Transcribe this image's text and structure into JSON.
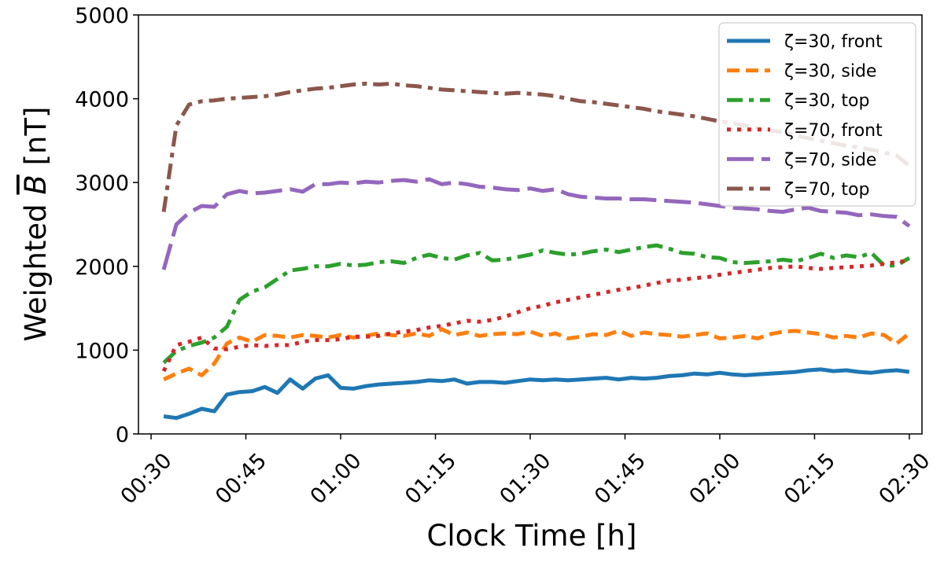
{
  "chart_data": {
    "type": "line",
    "xlabel": "Clock Time [h]",
    "ylabel": "Weighted B̄ [nT]",
    "ylabel_prefix": "Weighted ",
    "ylabel_symbol": "B",
    "ylabel_suffix": " [nT]",
    "xlim": [
      28,
      152
    ],
    "ylim": [
      0,
      5000
    ],
    "x_units": "minutes after 00:00",
    "x_ticks": [
      30,
      45,
      60,
      75,
      90,
      105,
      120,
      135,
      150
    ],
    "x_tick_labels": [
      "00:30",
      "00:45",
      "01:00",
      "01:15",
      "01:30",
      "01:45",
      "02:00",
      "02:15",
      "02:30"
    ],
    "y_ticks": [
      0,
      1000,
      2000,
      3000,
      4000,
      5000
    ],
    "y_tick_labels": [
      "0",
      "1000",
      "2000",
      "3000",
      "4000",
      "5000"
    ],
    "grid": false,
    "legend_position": "top-right",
    "x": [
      32,
      34,
      36,
      38,
      40,
      42,
      44,
      46,
      48,
      50,
      52,
      54,
      56,
      58,
      60,
      62,
      64,
      66,
      68,
      70,
      72,
      74,
      76,
      78,
      80,
      82,
      84,
      86,
      88,
      90,
      92,
      94,
      96,
      98,
      100,
      102,
      104,
      106,
      108,
      110,
      112,
      114,
      116,
      118,
      120,
      122,
      124,
      126,
      128,
      130,
      132,
      134,
      136,
      138,
      140,
      142,
      144,
      146,
      148,
      150
    ],
    "series": [
      {
        "name": "ζ=30, front",
        "color": "#1f77b4",
        "dash": "solid",
        "values": [
          210,
          190,
          240,
          300,
          270,
          470,
          500,
          510,
          560,
          490,
          650,
          540,
          660,
          700,
          550,
          540,
          570,
          590,
          600,
          610,
          620,
          640,
          630,
          650,
          600,
          620,
          620,
          610,
          630,
          650,
          640,
          650,
          640,
          650,
          660,
          670,
          650,
          670,
          660,
          670,
          690,
          700,
          720,
          710,
          730,
          710,
          700,
          710,
          720,
          730,
          740,
          760,
          770,
          750,
          760,
          740,
          730,
          750,
          760,
          740
        ]
      },
      {
        "name": "ζ=30, side",
        "color": "#ff7f0e",
        "dash": "dashed",
        "values": [
          650,
          720,
          780,
          700,
          840,
          1080,
          1150,
          1100,
          1180,
          1170,
          1150,
          1180,
          1170,
          1150,
          1180,
          1150,
          1170,
          1200,
          1180,
          1170,
          1200,
          1170,
          1250,
          1180,
          1210,
          1170,
          1190,
          1200,
          1190,
          1220,
          1170,
          1200,
          1140,
          1160,
          1190,
          1180,
          1230,
          1170,
          1210,
          1190,
          1180,
          1160,
          1180,
          1200,
          1140,
          1150,
          1170,
          1140,
          1190,
          1220,
          1230,
          1210,
          1190,
          1150,
          1170,
          1150,
          1200,
          1180,
          1080,
          1200
        ]
      },
      {
        "name": "ζ=30, top",
        "color": "#2ca02c",
        "dash": "dashdot",
        "values": [
          850,
          990,
          1050,
          1090,
          1150,
          1280,
          1600,
          1700,
          1750,
          1850,
          1950,
          1970,
          2000,
          2000,
          2030,
          2010,
          2020,
          2050,
          2060,
          2040,
          2100,
          2140,
          2100,
          2080,
          2130,
          2160,
          2070,
          2080,
          2110,
          2140,
          2190,
          2160,
          2140,
          2150,
          2180,
          2200,
          2170,
          2200,
          2230,
          2250,
          2210,
          2160,
          2150,
          2110,
          2100,
          2050,
          2040,
          2050,
          2060,
          2080,
          2060,
          2100,
          2150,
          2100,
          2130,
          2110,
          2160,
          2010,
          2010,
          2100
        ]
      },
      {
        "name": "ζ=70, front",
        "color": "#d62728",
        "dash": "dotted",
        "values": [
          750,
          1060,
          1100,
          1150,
          1020,
          1010,
          1040,
          1060,
          1050,
          1060,
          1060,
          1100,
          1120,
          1120,
          1130,
          1160,
          1160,
          1170,
          1200,
          1220,
          1240,
          1270,
          1290,
          1320,
          1350,
          1340,
          1360,
          1400,
          1450,
          1500,
          1530,
          1570,
          1600,
          1630,
          1660,
          1690,
          1720,
          1740,
          1770,
          1800,
          1830,
          1840,
          1860,
          1870,
          1900,
          1920,
          1940,
          1960,
          1980,
          1990,
          2000,
          1980,
          1970,
          1980,
          1990,
          2000,
          2010,
          2030,
          2050,
          2070
        ]
      },
      {
        "name": "ζ=70, side",
        "color": "#9467bd",
        "dash": "longdash",
        "values": [
          1960,
          2500,
          2640,
          2720,
          2710,
          2860,
          2900,
          2870,
          2880,
          2900,
          2920,
          2890,
          2980,
          2980,
          3000,
          2990,
          3010,
          3000,
          3020,
          3030,
          3010,
          3040,
          2980,
          3000,
          2980,
          2950,
          2940,
          2920,
          2910,
          2930,
          2900,
          2920,
          2860,
          2830,
          2820,
          2810,
          2810,
          2800,
          2800,
          2790,
          2780,
          2770,
          2760,
          2740,
          2720,
          2700,
          2690,
          2680,
          2660,
          2650,
          2680,
          2700,
          2660,
          2650,
          2640,
          2610,
          2620,
          2600,
          2590,
          2480
        ]
      },
      {
        "name": "ζ=70, top",
        "color": "#8c564b",
        "dash": "dashdot",
        "values": [
          2650,
          3680,
          3930,
          3970,
          3980,
          4000,
          4010,
          4020,
          4030,
          4050,
          4080,
          4100,
          4120,
          4130,
          4150,
          4170,
          4180,
          4170,
          4180,
          4160,
          4150,
          4130,
          4110,
          4100,
          4090,
          4080,
          4070,
          4060,
          4070,
          4060,
          4050,
          4030,
          4000,
          3970,
          3960,
          3940,
          3920,
          3900,
          3880,
          3850,
          3830,
          3810,
          3790,
          3760,
          3730,
          3710,
          3680,
          3650,
          3620,
          3600,
          3560,
          3530,
          3500,
          3470,
          3440,
          3420,
          3390,
          3360,
          3320,
          3200
        ]
      }
    ]
  }
}
